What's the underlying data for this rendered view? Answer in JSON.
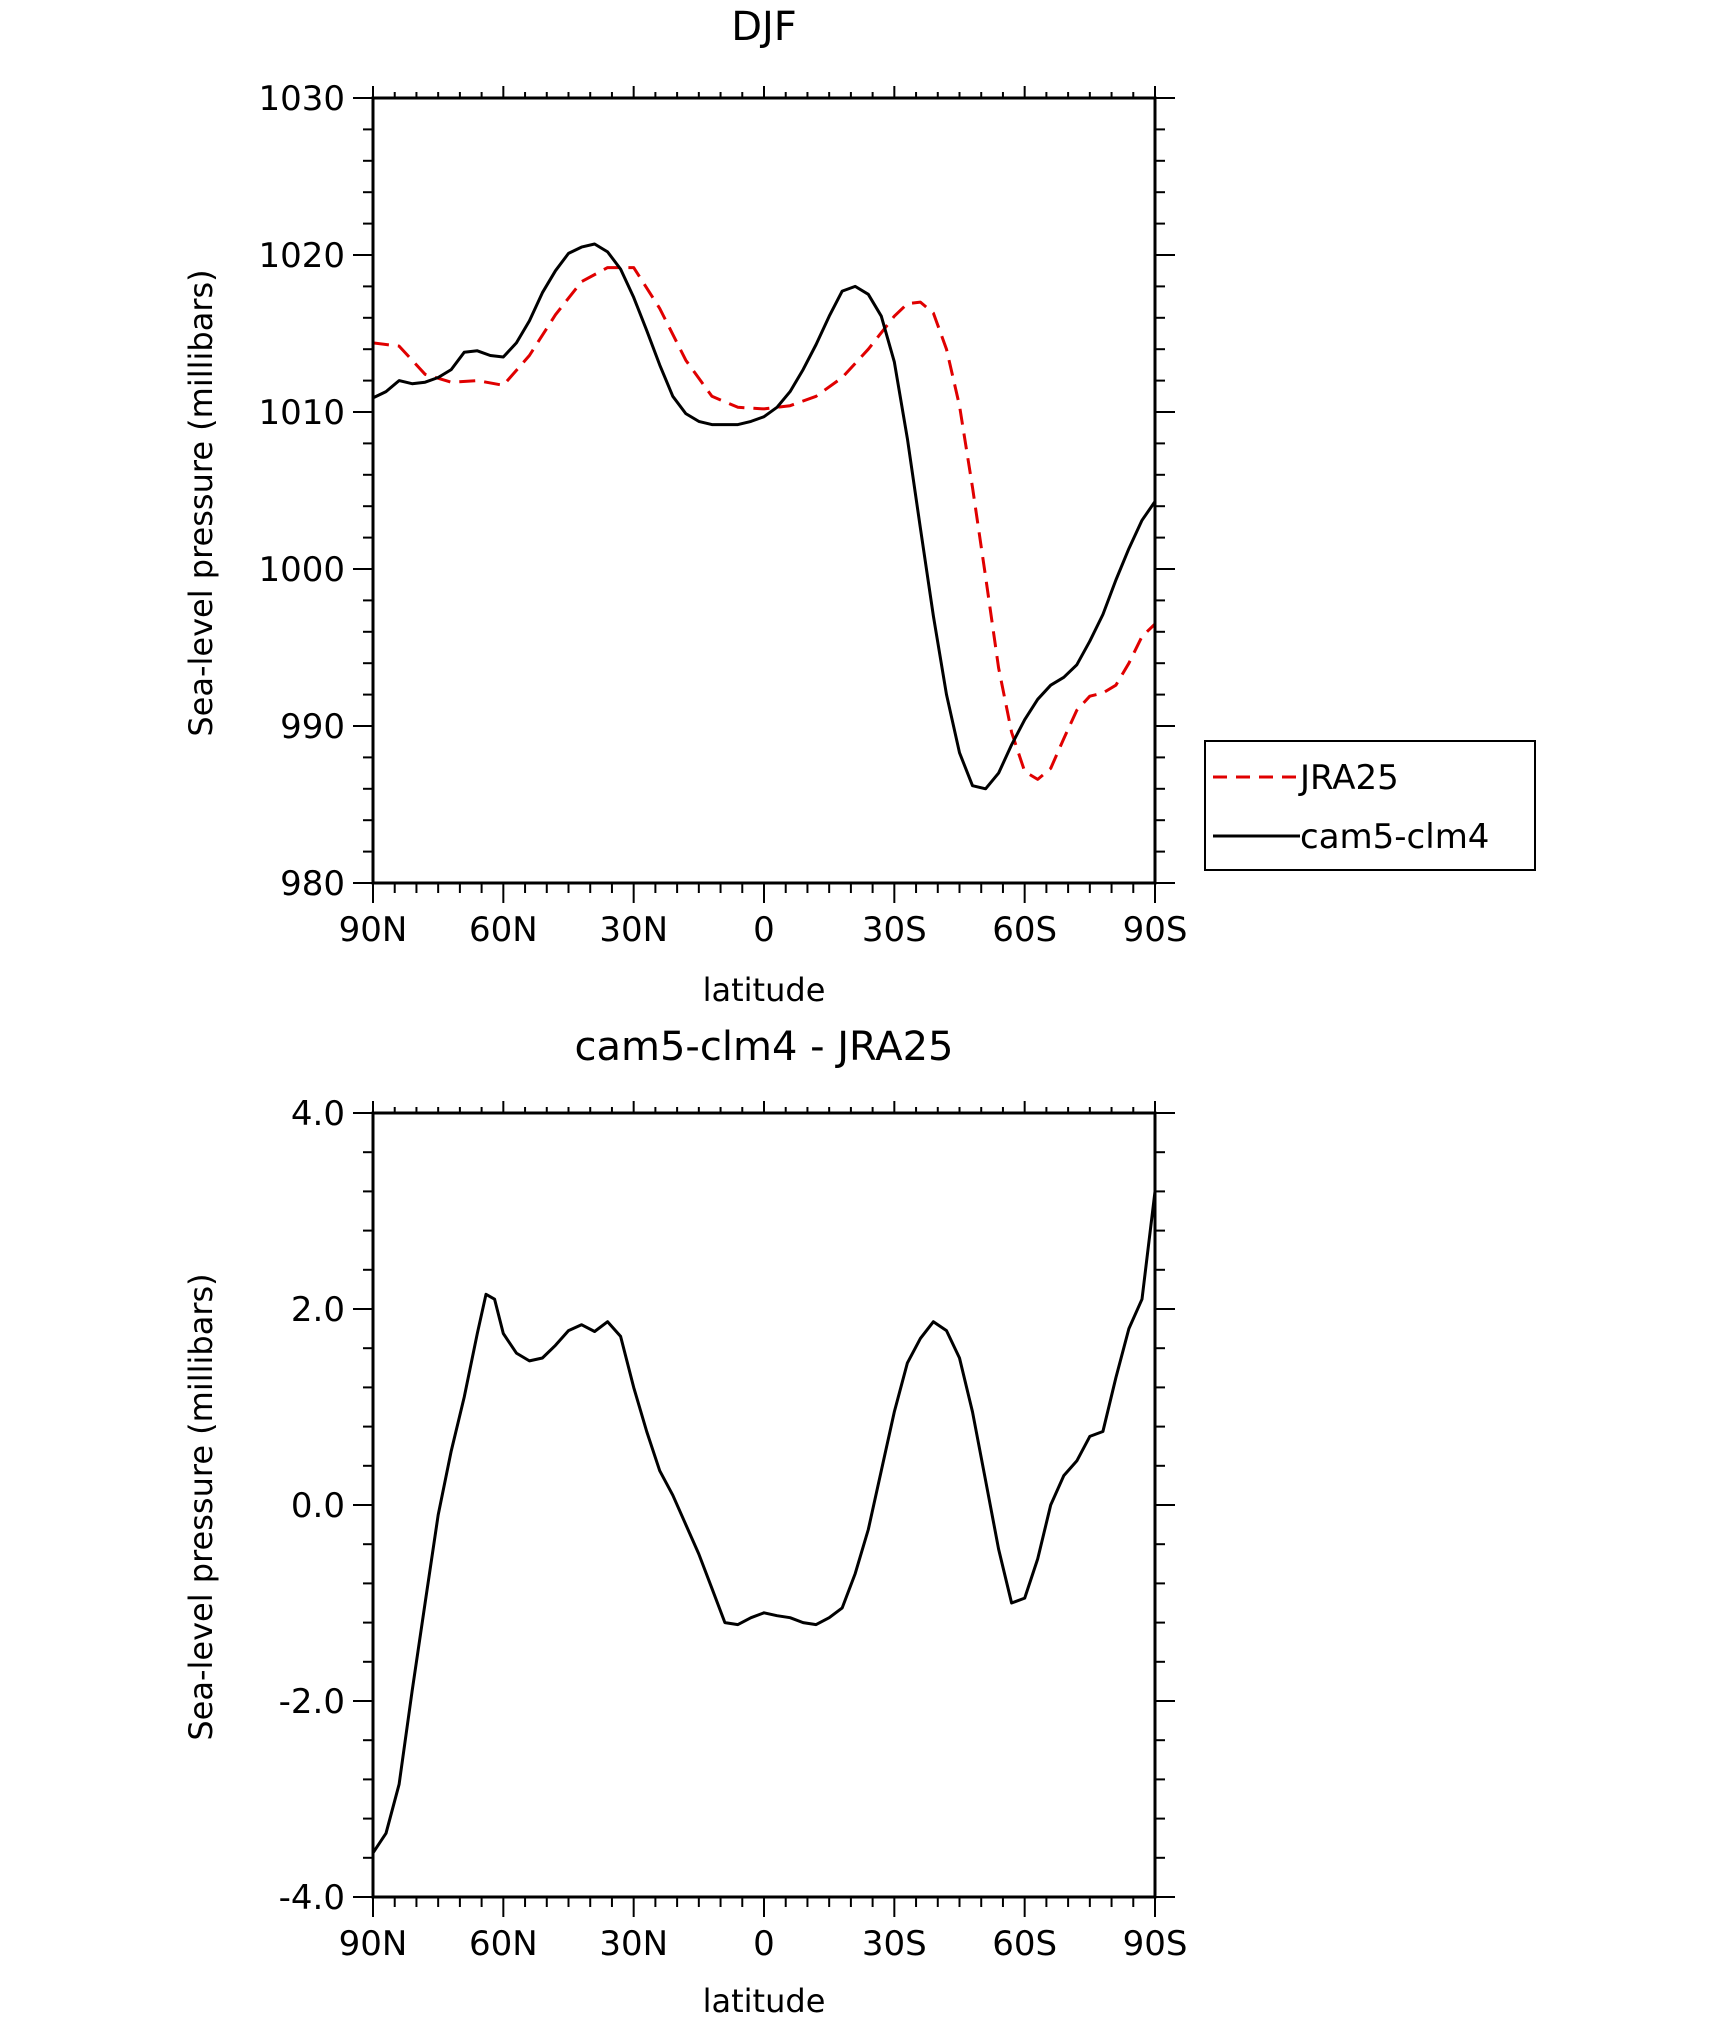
{
  "chart_data": [
    {
      "type": "line",
      "title": "DJF",
      "xlabel": "latitude",
      "ylabel": "Sea-level pressure (millibars)",
      "xticks": [
        "90N",
        "60N",
        "30N",
        "0",
        "30S",
        "60S",
        "90S"
      ],
      "yticks": [
        "980",
        "990",
        "1000",
        "1010",
        "1020",
        "1030"
      ],
      "ylim": [
        980,
        1030
      ],
      "xlim": [
        90,
        -90
      ],
      "legend_position": "right",
      "series": [
        {
          "name": "JRA25",
          "color": "#e00000",
          "style": "dashed",
          "x": [
            90,
            84,
            78,
            72,
            66,
            60,
            54,
            48,
            42,
            36,
            30,
            24,
            18,
            12,
            6,
            0,
            -6,
            -12,
            -18,
            -24,
            -30,
            -33,
            -36,
            -39,
            -42,
            -45,
            -48,
            -51,
            -54,
            -57,
            -60,
            -63,
            -66,
            -69,
            -72,
            -75,
            -78,
            -81,
            -84,
            -87,
            -90
          ],
          "values": [
            1014.4,
            1014.2,
            1012.4,
            1011.9,
            1012.0,
            1011.7,
            1013.6,
            1016.2,
            1018.3,
            1019.2,
            1019.2,
            1016.6,
            1013.3,
            1011.0,
            1010.3,
            1010.2,
            1010.4,
            1011.0,
            1012.2,
            1014.0,
            1016.1,
            1016.9,
            1017.0,
            1016.3,
            1014.0,
            1010.4,
            1005.2,
            999.5,
            993.7,
            989.6,
            987.1,
            986.6,
            987.3,
            989.2,
            991.0,
            991.9,
            992.1,
            992.6,
            994.0,
            995.7,
            996.5
          ]
        },
        {
          "name": "cam5-clm4",
          "color": "#000000",
          "style": "solid",
          "x": [
            90,
            87,
            84,
            81,
            78,
            75,
            72,
            69,
            66,
            63,
            60,
            57,
            54,
            51,
            48,
            45,
            42,
            39,
            36,
            33,
            30,
            27,
            24,
            21,
            18,
            15,
            12,
            9,
            6,
            3,
            0,
            -3,
            -6,
            -9,
            -12,
            -15,
            -18,
            -21,
            -24,
            -27,
            -30,
            -33,
            -36,
            -39,
            -42,
            -45,
            -48,
            -51,
            -54,
            -57,
            -60,
            -63,
            -66,
            -69,
            -72,
            -75,
            -78,
            -81,
            -84,
            -87,
            -90
          ],
          "values": [
            1010.9,
            1011.3,
            1012.0,
            1011.8,
            1011.9,
            1012.2,
            1012.7,
            1013.8,
            1013.9,
            1013.6,
            1013.5,
            1014.4,
            1015.8,
            1017.6,
            1019.0,
            1020.1,
            1020.5,
            1020.7,
            1020.2,
            1019.1,
            1017.3,
            1015.2,
            1013.0,
            1011.0,
            1009.9,
            1009.4,
            1009.2,
            1009.2,
            1009.2,
            1009.4,
            1009.7,
            1010.3,
            1011.3,
            1012.7,
            1014.3,
            1016.1,
            1017.7,
            1018.0,
            1017.5,
            1016.1,
            1013.2,
            1008.3,
            1002.6,
            997.0,
            992.0,
            988.3,
            986.2,
            986.0,
            987.0,
            988.8,
            990.4,
            991.7,
            992.6,
            993.1,
            993.9,
            995.4,
            997.1,
            999.3,
            1001.3,
            1003.1,
            1004.3
          ]
        }
      ]
    },
    {
      "type": "line",
      "title": "cam5-clm4 - JRA25",
      "xlabel": "latitude",
      "ylabel": "Sea-level pressure (millibars)",
      "xticks": [
        "90N",
        "60N",
        "30N",
        "0",
        "30S",
        "60S",
        "90S"
      ],
      "yticks": [
        "-4.0",
        "-2.0",
        "0.0",
        "2.0",
        "4.0"
      ],
      "ylim": [
        -4,
        4
      ],
      "xlim": [
        90,
        -90
      ],
      "series": [
        {
          "color": "#000000",
          "style": "solid",
          "x": [
            90,
            87,
            84,
            81,
            78,
            75,
            72,
            69,
            66,
            64,
            62,
            60,
            57,
            54,
            51,
            48,
            45,
            42,
            39,
            36,
            33,
            30,
            27,
            24,
            21,
            18,
            15,
            12,
            9,
            6,
            3,
            0,
            -3,
            -6,
            -9,
            -12,
            -15,
            -18,
            -21,
            -24,
            -27,
            -30,
            -33,
            -36,
            -39,
            -42,
            -45,
            -48,
            -51,
            -54,
            -57,
            -60,
            -63,
            -66,
            -69,
            -72,
            -75,
            -78,
            -81,
            -84,
            -87,
            -90
          ],
          "values": [
            -3.55,
            -3.35,
            -2.85,
            -1.9,
            -1.0,
            -0.1,
            0.55,
            1.1,
            1.75,
            2.15,
            2.1,
            1.75,
            1.55,
            1.47,
            1.5,
            1.63,
            1.78,
            1.84,
            1.77,
            1.87,
            1.72,
            1.2,
            0.75,
            0.35,
            0.1,
            -0.2,
            -0.5,
            -0.85,
            -1.2,
            -1.22,
            -1.15,
            -1.1,
            -1.13,
            -1.15,
            -1.2,
            -1.22,
            -1.15,
            -1.05,
            -0.7,
            -0.25,
            0.35,
            0.95,
            1.45,
            1.7,
            1.87,
            1.78,
            1.5,
            0.95,
            0.25,
            -0.45,
            -1.0,
            -0.95,
            -0.55,
            0.0,
            0.3,
            0.45,
            0.7,
            0.75,
            1.3,
            1.8,
            2.1,
            3.2
          ]
        }
      ]
    }
  ]
}
